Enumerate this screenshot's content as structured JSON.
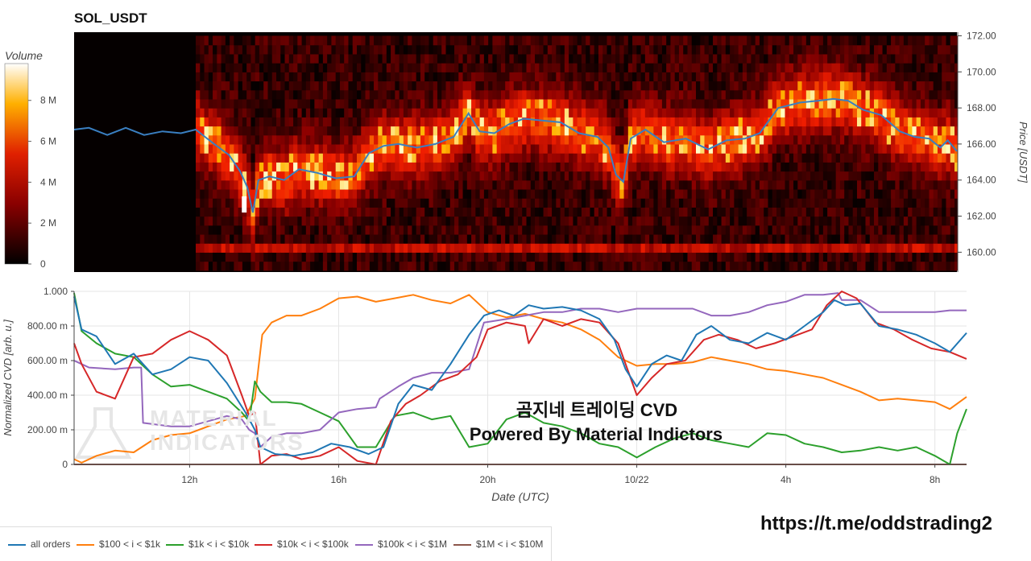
{
  "title": "SOL_USDT",
  "watermark": {
    "title": "곰지네 트레이딩 CVD",
    "subtitle": "Powered By Material Indictors",
    "url": "https://t.me/oddstrading2",
    "logo_line1": "MATERIAL",
    "logo_line2": "INDICATORS"
  },
  "colorbar": {
    "title": "Volume",
    "ticks": [
      "8 M",
      "6 M",
      "4 M",
      "2 M",
      "0"
    ],
    "tick_values": [
      8,
      6,
      4,
      2,
      0
    ],
    "range": [
      0,
      9.8
    ]
  },
  "heatmap": {
    "ylabel": "Price [USDT]",
    "yticks": [
      "172.00",
      "170.00",
      "168.00",
      "166.00",
      "164.00",
      "162.00",
      "160.00"
    ],
    "ytick_values": [
      172,
      170,
      168,
      166,
      164,
      162,
      160
    ],
    "ylim": [
      158.9,
      172.2
    ]
  },
  "cvd": {
    "ylabel": "Normalized CVD [arb. u.]",
    "xlabel": "Date (UTC)",
    "yticks": [
      "1.000",
      "800.00 m",
      "600.00 m",
      "400.00 m",
      "200.00 m",
      "0"
    ],
    "ytick_values": [
      1,
      0.8,
      0.6,
      0.4,
      0.2,
      0
    ],
    "xticks": [
      "12h",
      "16h",
      "20h",
      "10/22",
      "4h",
      "8h"
    ],
    "xtick_values": [
      12,
      16,
      20,
      24,
      28,
      32
    ],
    "xlim": [
      8.9,
      32.85
    ],
    "ylim": [
      0,
      1
    ]
  },
  "legend": [
    {
      "label": "all orders",
      "color": "#1f77b4"
    },
    {
      "label": "$100 < i < $1k",
      "color": "#ff7f0e"
    },
    {
      "label": "$1k < i < $10k",
      "color": "#2ca02c"
    },
    {
      "label": "$10k < i < $100k",
      "color": "#d62728"
    },
    {
      "label": "$100k < i < $1M",
      "color": "#9467bd"
    },
    {
      "label": "$1M < i < $10M",
      "color": "#8c564b"
    }
  ],
  "chart_data": [
    {
      "type": "line",
      "title": "SOL_USDT",
      "ylabel": "Price [USDT]",
      "xlim": [
        8.9,
        32.85
      ],
      "ylim": [
        158.9,
        172.2
      ],
      "series": [
        {
          "name": "price",
          "x": [
            8.9,
            9.3,
            9.8,
            10.3,
            10.8,
            11.3,
            11.8,
            12.2,
            12.7,
            13.1,
            13.4,
            13.6,
            13.75,
            13.9,
            14.2,
            14.6,
            15.0,
            15.5,
            16.0,
            16.5,
            16.9,
            17.3,
            17.7,
            18.2,
            18.7,
            19.2,
            19.6,
            19.9,
            20.3,
            20.7,
            21.1,
            21.6,
            22.1,
            22.6,
            23.1,
            23.4,
            23.6,
            23.8,
            24.0,
            24.4,
            24.9,
            25.5,
            26.1,
            26.6,
            27.1,
            27.5,
            28.0,
            28.6,
            29.1,
            29.5,
            29.9,
            30.3,
            30.8,
            31.3,
            31.7,
            32.1,
            32.4,
            32.6,
            32.85
          ],
          "y": [
            166.8,
            166.9,
            166.5,
            166.9,
            166.5,
            166.7,
            166.6,
            166.8,
            166.0,
            165.4,
            164.5,
            163.6,
            162.2,
            164.0,
            164.2,
            164.0,
            164.6,
            164.4,
            164.1,
            164.2,
            165.5,
            165.9,
            166.0,
            165.8,
            166.0,
            166.4,
            167.7,
            166.7,
            166.6,
            167.1,
            167.4,
            167.3,
            167.2,
            166.6,
            166.4,
            165.8,
            164.3,
            163.9,
            166.3,
            166.8,
            166.1,
            166.3,
            165.7,
            166.2,
            166.3,
            166.6,
            168.0,
            168.3,
            168.4,
            168.5,
            168.4,
            167.9,
            167.6,
            166.7,
            166.4,
            166.3,
            165.8,
            166.2,
            165.6
          ]
        }
      ]
    },
    {
      "type": "line",
      "xlabel": "Date (UTC)",
      "ylabel": "Normalized CVD [arb. u.]",
      "xlim": [
        8.9,
        32.85
      ],
      "ylim": [
        0,
        1
      ],
      "categories": [
        "12h",
        "16h",
        "20h",
        "10/22",
        "4h",
        "8h"
      ],
      "series": [
        {
          "name": "all orders",
          "x": [
            8.9,
            9.1,
            9.5,
            10.0,
            10.5,
            11.0,
            11.5,
            12.0,
            12.5,
            13.0,
            13.5,
            13.75,
            13.9,
            14.3,
            14.8,
            15.3,
            15.8,
            16.3,
            16.8,
            17.2,
            17.6,
            18.0,
            18.5,
            19.0,
            19.5,
            19.9,
            20.3,
            20.7,
            21.1,
            21.5,
            22.0,
            22.5,
            23.0,
            23.4,
            23.7,
            24.0,
            24.4,
            24.8,
            25.2,
            25.6,
            26.0,
            26.5,
            27.0,
            27.5,
            28.0,
            28.5,
            29.0,
            29.3,
            29.6,
            30.0,
            30.5,
            31.0,
            31.5,
            32.0,
            32.4,
            32.85
          ],
          "y": [
            0.97,
            0.78,
            0.74,
            0.58,
            0.64,
            0.52,
            0.55,
            0.62,
            0.6,
            0.47,
            0.3,
            0.2,
            0.1,
            0.06,
            0.05,
            0.07,
            0.12,
            0.1,
            0.06,
            0.1,
            0.35,
            0.46,
            0.43,
            0.58,
            0.75,
            0.86,
            0.89,
            0.86,
            0.92,
            0.9,
            0.91,
            0.89,
            0.84,
            0.72,
            0.55,
            0.45,
            0.58,
            0.63,
            0.6,
            0.75,
            0.8,
            0.72,
            0.7,
            0.76,
            0.72,
            0.8,
            0.88,
            0.95,
            0.92,
            0.93,
            0.8,
            0.78,
            0.75,
            0.7,
            0.65,
            0.76
          ]
        },
        {
          "name": "$100 < i < $1k",
          "x": [
            8.9,
            9.1,
            9.5,
            10.0,
            10.5,
            11.0,
            11.5,
            12.0,
            12.5,
            13.0,
            13.5,
            13.75,
            13.95,
            14.2,
            14.6,
            15.0,
            15.5,
            16.0,
            16.5,
            17.0,
            17.5,
            18.0,
            18.5,
            19.0,
            19.5,
            20.0,
            20.5,
            21.0,
            21.5,
            22.0,
            22.5,
            23.0,
            23.5,
            24.0,
            24.5,
            25.0,
            25.5,
            26.0,
            26.5,
            27.0,
            27.5,
            28.0,
            28.5,
            29.0,
            29.5,
            30.0,
            30.5,
            31.0,
            31.5,
            32.0,
            32.4,
            32.85
          ],
          "y": [
            0.03,
            0.01,
            0.05,
            0.08,
            0.07,
            0.14,
            0.17,
            0.18,
            0.22,
            0.26,
            0.28,
            0.38,
            0.75,
            0.82,
            0.86,
            0.86,
            0.9,
            0.96,
            0.97,
            0.94,
            0.96,
            0.98,
            0.95,
            0.93,
            0.98,
            0.88,
            0.85,
            0.87,
            0.84,
            0.82,
            0.78,
            0.72,
            0.62,
            0.57,
            0.58,
            0.58,
            0.59,
            0.62,
            0.6,
            0.58,
            0.55,
            0.54,
            0.52,
            0.5,
            0.46,
            0.42,
            0.37,
            0.38,
            0.37,
            0.36,
            0.32,
            0.39
          ]
        },
        {
          "name": "$1k < i < $10k",
          "x": [
            8.9,
            9.1,
            9.5,
            10.0,
            10.5,
            11.0,
            11.5,
            12.0,
            12.5,
            13.0,
            13.4,
            13.6,
            13.75,
            13.9,
            14.2,
            14.6,
            15.0,
            15.5,
            16.0,
            16.5,
            17.0,
            17.5,
            18.0,
            18.5,
            19.0,
            19.5,
            20.0,
            20.5,
            21.0,
            21.5,
            22.0,
            22.5,
            23.0,
            23.5,
            24.0,
            24.5,
            25.0,
            25.5,
            26.0,
            26.5,
            27.0,
            27.5,
            28.0,
            28.5,
            29.0,
            29.5,
            30.0,
            30.5,
            31.0,
            31.5,
            32.0,
            32.4,
            32.6,
            32.85
          ],
          "y": [
            0.99,
            0.77,
            0.7,
            0.64,
            0.62,
            0.52,
            0.45,
            0.46,
            0.42,
            0.38,
            0.3,
            0.25,
            0.48,
            0.42,
            0.36,
            0.36,
            0.35,
            0.3,
            0.25,
            0.1,
            0.1,
            0.28,
            0.3,
            0.26,
            0.28,
            0.1,
            0.12,
            0.26,
            0.3,
            0.24,
            0.22,
            0.18,
            0.12,
            0.1,
            0.04,
            0.1,
            0.15,
            0.18,
            0.14,
            0.12,
            0.1,
            0.18,
            0.17,
            0.12,
            0.1,
            0.07,
            0.08,
            0.1,
            0.08,
            0.1,
            0.05,
            0.0,
            0.18,
            0.32
          ]
        },
        {
          "name": "$10k < i < $100k",
          "x": [
            8.9,
            9.1,
            9.5,
            10.0,
            10.5,
            11.0,
            11.5,
            12.0,
            12.5,
            13.0,
            13.4,
            13.6,
            13.75,
            13.9,
            14.2,
            14.6,
            15.0,
            15.5,
            16.0,
            16.5,
            17.0,
            17.4,
            17.8,
            18.2,
            18.7,
            19.2,
            19.7,
            20.0,
            20.5,
            21.0,
            21.1,
            21.5,
            22.0,
            22.5,
            23.0,
            23.5,
            24.0,
            24.4,
            24.8,
            25.3,
            25.8,
            26.2,
            26.7,
            27.2,
            27.7,
            28.2,
            28.7,
            29.1,
            29.5,
            29.9,
            30.4,
            30.9,
            31.4,
            31.9,
            32.4,
            32.85
          ],
          "y": [
            0.7,
            0.58,
            0.42,
            0.38,
            0.62,
            0.64,
            0.72,
            0.77,
            0.72,
            0.63,
            0.4,
            0.28,
            0.3,
            0.0,
            0.05,
            0.06,
            0.03,
            0.05,
            0.1,
            0.02,
            0.0,
            0.25,
            0.35,
            0.4,
            0.48,
            0.52,
            0.62,
            0.78,
            0.82,
            0.8,
            0.7,
            0.84,
            0.8,
            0.84,
            0.82,
            0.7,
            0.4,
            0.5,
            0.58,
            0.6,
            0.72,
            0.75,
            0.72,
            0.67,
            0.7,
            0.74,
            0.78,
            0.92,
            1.0,
            0.96,
            0.82,
            0.78,
            0.72,
            0.67,
            0.65,
            0.61
          ]
        },
        {
          "name": "$100k < i < $1M",
          "x": [
            8.9,
            9.1,
            9.3,
            10.0,
            10.5,
            10.7,
            10.75,
            11.5,
            12.0,
            12.5,
            13.0,
            13.4,
            13.6,
            13.75,
            13.9,
            14.2,
            14.6,
            15.0,
            15.5,
            16.0,
            16.5,
            17.0,
            17.1,
            17.6,
            18.0,
            18.5,
            19.0,
            19.5,
            19.9,
            20.5,
            21.0,
            21.5,
            22.0,
            22.5,
            23.0,
            23.5,
            24.0,
            24.5,
            25.0,
            25.5,
            26.0,
            26.5,
            27.0,
            27.5,
            28.0,
            28.5,
            29.0,
            29.4,
            29.5,
            30.0,
            30.5,
            31.0,
            31.5,
            32.0,
            32.4,
            32.85
          ],
          "y": [
            0.6,
            0.58,
            0.56,
            0.55,
            0.56,
            0.56,
            0.24,
            0.22,
            0.22,
            0.25,
            0.28,
            0.26,
            0.2,
            0.18,
            0.1,
            0.16,
            0.18,
            0.18,
            0.2,
            0.3,
            0.32,
            0.33,
            0.38,
            0.45,
            0.5,
            0.53,
            0.53,
            0.55,
            0.82,
            0.84,
            0.86,
            0.88,
            0.88,
            0.9,
            0.9,
            0.88,
            0.9,
            0.9,
            0.9,
            0.9,
            0.86,
            0.86,
            0.88,
            0.92,
            0.94,
            0.98,
            0.98,
            0.99,
            0.95,
            0.95,
            0.88,
            0.88,
            0.88,
            0.88,
            0.89,
            0.89
          ]
        },
        {
          "name": "$1M < i < $10M",
          "x": [
            8.9,
            32.85
          ],
          "y": [
            0.0,
            0.0
          ]
        }
      ]
    }
  ]
}
